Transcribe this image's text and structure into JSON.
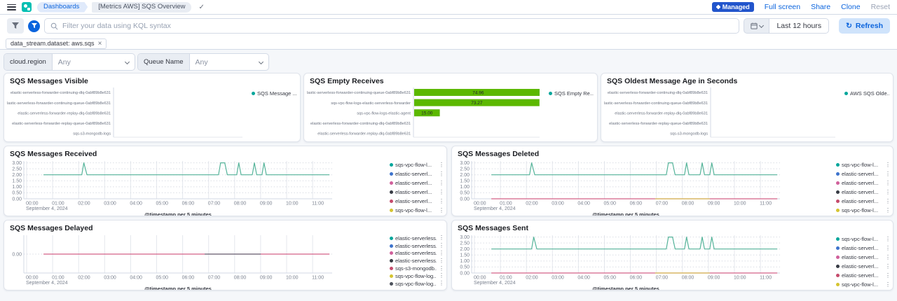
{
  "header": {
    "breadcrumbs": [
      "Dashboards",
      "[Metrics AWS] SQS Overview"
    ],
    "managed_badge": "Managed",
    "actions": {
      "full_screen": "Full screen",
      "share": "Share",
      "clone": "Clone",
      "reset": "Reset"
    }
  },
  "query_bar": {
    "placeholder": "Filter your data using KQL syntax",
    "time_range": "Last 12 hours",
    "refresh_label": "Refresh"
  },
  "filter_pill": {
    "label": "data_stream.dataset: aws.sqs",
    "close": "×"
  },
  "controls": [
    {
      "label": "cloud.region",
      "value": "Any"
    },
    {
      "label": "Queue Name",
      "value": "Any"
    }
  ],
  "icons": {
    "check": "✓",
    "refresh": "↻",
    "menu_dots": "⋮"
  },
  "colors": {
    "accent_blue": "#0B64DD",
    "badge_blue": "#2255CC",
    "bar_green": "#5CB800",
    "line_teal": "#54B399",
    "line_pink": "#D36086",
    "line_yellow": "#D6BF57",
    "line_gray": "#69707D"
  },
  "charts": [
    {
      "id": "visible",
      "title": "SQS Messages Visible",
      "type": "bar-h",
      "categories": [
        "elastic-serverless-forwarder-continuing-dlq-0abf89b8e631",
        "elastic-serverless-forwarder-continuing-queue-0abf89b8e631",
        "elastic-serverless-forwarder-replay-dlq-0abf89b8e631",
        "elastic-serverless-forwarder-replay-queue-0abf89b8e631",
        "sqs-s3-mongodb-logs"
      ],
      "values": [
        null,
        null,
        null,
        null,
        null
      ],
      "legend": [
        {
          "label": "SQS Message ...",
          "color": "#00A69B"
        }
      ]
    },
    {
      "id": "empty",
      "title": "SQS Empty Receives",
      "type": "bar-h",
      "categories": [
        "elastic-serverless-forwarder-continuing-queue-0abf89b8e631",
        "sqs-vpc-flow-logs-elastic-serverless-forwarder",
        "sqs-vpc-flow-logs-elastic-agent",
        "elastic-serverless-forwarder-continuing-dlq-0abf89b8e631",
        "elastic-serverless-forwarder-replay-dlq-0abf89b8e631"
      ],
      "values": [
        74.96,
        73.27,
        15.0,
        null,
        null
      ],
      "value_labels": [
        "74.96",
        "73.27",
        "15.00"
      ],
      "xmax": 82,
      "bar_color": "#5CB800",
      "legend": [
        {
          "label": "SQS Empty Re...",
          "color": "#00A69B"
        }
      ]
    },
    {
      "id": "oldest",
      "title": "SQS Oldest Message Age in Seconds",
      "type": "bar-h",
      "categories": [
        "elastic-serverless-forwarder-continuing-dlq-0abf89b8e631",
        "elastic-serverless-forwarder-continuing-queue-0abf89b8e631",
        "elastic-serverless-forwarder-replay-dlq-0abf89b8e631",
        "elastic-serverless-forwarder-replay-queue-0abf89b8e631",
        "sqs-s3-mongodb-logs"
      ],
      "values": [
        null,
        null,
        null,
        null,
        null
      ],
      "legend": [
        {
          "label": "AWS SQS Olde...",
          "color": "#00A69B"
        }
      ]
    },
    {
      "id": "received",
      "title": "SQS Messages Received",
      "type": "line",
      "ymin": 0,
      "ymax": 3.15,
      "yticks": [
        [
          3,
          "3.00"
        ],
        [
          2.5,
          "2.50"
        ],
        [
          2,
          "2.00"
        ],
        [
          1.5,
          "1.50"
        ],
        [
          1,
          "1.00"
        ],
        [
          0.5,
          "0.50"
        ],
        [
          0,
          "0.00"
        ]
      ],
      "xticks": [
        [
          0,
          "00:00"
        ],
        [
          1,
          "01:00"
        ],
        [
          2,
          "02:00"
        ],
        [
          3,
          "03:00"
        ],
        [
          4,
          "04:00"
        ],
        [
          5,
          "05:00"
        ],
        [
          6,
          "06:00"
        ],
        [
          7,
          "07:00"
        ],
        [
          8,
          "08:00"
        ],
        [
          9,
          "09:00"
        ],
        [
          10,
          "10:00"
        ],
        [
          11,
          "11:00"
        ]
      ],
      "date_label": "September 4, 2024",
      "axis_title": "@timestamp per 5 minutes",
      "series": [
        {
          "name": "sqs-vpc-flow-logs",
          "color": "#54B399",
          "points": [
            [
              0.65,
              2
            ],
            [
              2.12,
              2
            ],
            [
              2.2,
              3
            ],
            [
              2.32,
              2
            ],
            [
              7.38,
              2
            ],
            [
              7.46,
              3
            ],
            [
              7.62,
              3
            ],
            [
              7.72,
              2
            ],
            [
              8.08,
              2
            ],
            [
              8.16,
              3
            ],
            [
              8.25,
              2
            ],
            [
              8.68,
              2
            ],
            [
              8.76,
              3
            ],
            [
              8.85,
              2
            ],
            [
              9.05,
              2
            ],
            [
              9.13,
              3
            ],
            [
              9.22,
              2
            ],
            [
              11.65,
              2
            ]
          ]
        }
      ],
      "legend": [
        {
          "label": "sqs-vpc-flow-l...",
          "color": "#00A69B",
          "menu": true
        },
        {
          "label": "elastic-serverl...",
          "color": "#3D73CC",
          "menu": true
        },
        {
          "label": "elastic-serverl...",
          "color": "#D0609B",
          "menu": true
        },
        {
          "label": "elastic-serverl...",
          "color": "#373B44",
          "menu": true
        },
        {
          "label": "elastic-serverl...",
          "color": "#C54B6C",
          "menu": true
        },
        {
          "label": "sqs-vpc-flow-l...",
          "color": "#D5C42F",
          "menu": true
        }
      ]
    },
    {
      "id": "deleted",
      "title": "SQS Messages Deleted",
      "type": "line",
      "ymin": 0,
      "ymax": 3.15,
      "yticks": [
        [
          3,
          "3.00"
        ],
        [
          2.5,
          "2.50"
        ],
        [
          2,
          "2.00"
        ],
        [
          1.5,
          "1.50"
        ],
        [
          1,
          "1.00"
        ],
        [
          0.5,
          "0.50"
        ],
        [
          0,
          "0.00"
        ]
      ],
      "xticks": [
        [
          0,
          "00:00"
        ],
        [
          1,
          "01:00"
        ],
        [
          2,
          "02:00"
        ],
        [
          3,
          "03:00"
        ],
        [
          4,
          "04:00"
        ],
        [
          5,
          "05:00"
        ],
        [
          6,
          "06:00"
        ],
        [
          7,
          "07:00"
        ],
        [
          8,
          "08:00"
        ],
        [
          9,
          "09:00"
        ],
        [
          10,
          "10:00"
        ],
        [
          11,
          "11:00"
        ]
      ],
      "date_label": "September 4, 2024",
      "axis_title": "@timestamp per 5 minutes",
      "series": [
        {
          "name": "pink-zero",
          "color": "#D36086",
          "points": [
            [
              0.65,
              0
            ],
            [
              11.65,
              0
            ]
          ]
        },
        {
          "name": "yellow-zero",
          "color": "#D6BF57",
          "points": [
            [
              6.95,
              0
            ],
            [
              9.05,
              0
            ]
          ]
        },
        {
          "name": "sqs-vpc-flow-logs",
          "color": "#54B399",
          "points": [
            [
              0.65,
              2
            ],
            [
              2.12,
              2
            ],
            [
              2.2,
              3
            ],
            [
              2.32,
              2
            ],
            [
              7.38,
              2
            ],
            [
              7.46,
              3
            ],
            [
              7.62,
              3
            ],
            [
              7.72,
              2
            ],
            [
              8.08,
              2
            ],
            [
              8.16,
              3
            ],
            [
              8.25,
              2
            ],
            [
              8.68,
              2
            ],
            [
              8.76,
              3
            ],
            [
              8.85,
              2
            ],
            [
              9.05,
              2
            ],
            [
              9.13,
              3
            ],
            [
              9.22,
              2
            ],
            [
              11.65,
              2
            ]
          ]
        }
      ],
      "legend": [
        {
          "label": "sqs-vpc-flow-l...",
          "color": "#00A69B",
          "menu": true
        },
        {
          "label": "elastic-serverl...",
          "color": "#3D73CC",
          "menu": true
        },
        {
          "label": "elastic-serverl...",
          "color": "#D0609B",
          "menu": true
        },
        {
          "label": "elastic-serverl...",
          "color": "#373B44",
          "menu": true
        },
        {
          "label": "elastic-serverl...",
          "color": "#C54B6C",
          "menu": true
        },
        {
          "label": "sqs-vpc-flow-l...",
          "color": "#D5C42F",
          "menu": true
        }
      ]
    },
    {
      "id": "delayed",
      "title": "SQS Messages Delayed",
      "type": "line",
      "ymin": -1,
      "ymax": 1,
      "yticks": [
        [
          0,
          "0.00"
        ]
      ],
      "xticks": [
        [
          0,
          "00:00"
        ],
        [
          1,
          "01:00"
        ],
        [
          2,
          "02:00"
        ],
        [
          3,
          "03:00"
        ],
        [
          4,
          "04:00"
        ],
        [
          5,
          "05:00"
        ],
        [
          6,
          "06:00"
        ],
        [
          7,
          "07:00"
        ],
        [
          8,
          "08:00"
        ],
        [
          9,
          "09:00"
        ],
        [
          10,
          "10:00"
        ],
        [
          11,
          "11:00"
        ]
      ],
      "date_label": "September 4, 2024",
      "axis_title": "@timestamp per 5 minutes",
      "series": [
        {
          "name": "pink-zero",
          "color": "#D36086",
          "points": [
            [
              0.65,
              0
            ],
            [
              11.65,
              0
            ]
          ]
        },
        {
          "name": "gray-zero",
          "color": "#69707D",
          "points": [
            [
              6.85,
              0
            ],
            [
              9.0,
              0
            ]
          ]
        }
      ],
      "legend": [
        {
          "label": "elastic-serverless...",
          "color": "#00A69B",
          "menu": true
        },
        {
          "label": "elastic-serverless...",
          "color": "#3D73CC",
          "menu": true
        },
        {
          "label": "elastic-serverless...",
          "color": "#D0609B",
          "menu": true
        },
        {
          "label": "elastic-serverless...",
          "color": "#373B44",
          "menu": true
        },
        {
          "label": "sqs-s3-mongodb...",
          "color": "#C54B6C",
          "menu": true
        },
        {
          "label": "sqs-vpc-flow-log...",
          "color": "#D5C42F",
          "menu": true
        },
        {
          "label": "sqs-vpc-flow-log...",
          "color": "#4D525C",
          "menu": true
        }
      ]
    },
    {
      "id": "sent",
      "title": "SQS Messages Sent",
      "type": "line",
      "ymin": 0,
      "ymax": 3.15,
      "yticks": [
        [
          3,
          "3.00"
        ],
        [
          2.5,
          "2.50"
        ],
        [
          2,
          "2.00"
        ],
        [
          1.5,
          "1.50"
        ],
        [
          1,
          "1.00"
        ],
        [
          0.5,
          "0.50"
        ],
        [
          0,
          "0.00"
        ]
      ],
      "xticks": [
        [
          0,
          "00:00"
        ],
        [
          1,
          "01:00"
        ],
        [
          2,
          "02:00"
        ],
        [
          3,
          "03:00"
        ],
        [
          4,
          "04:00"
        ],
        [
          5,
          "05:00"
        ],
        [
          6,
          "06:00"
        ],
        [
          7,
          "07:00"
        ],
        [
          8,
          "08:00"
        ],
        [
          9,
          "09:00"
        ],
        [
          10,
          "10:00"
        ],
        [
          11,
          "11:00"
        ]
      ],
      "date_label": "September 4, 2024",
      "axis_title": "@timestamp per 5 minutes",
      "series": [
        {
          "name": "pink-zero",
          "color": "#D36086",
          "points": [
            [
              0.65,
              0
            ],
            [
              11.65,
              0
            ]
          ]
        },
        {
          "name": "yellow-zero",
          "color": "#D6BF57",
          "points": [
            [
              6.95,
              0
            ],
            [
              9.05,
              0
            ]
          ]
        },
        {
          "name": "sqs-vpc-flow-logs",
          "color": "#54B399",
          "points": [
            [
              0.65,
              2
            ],
            [
              2.2,
              2
            ],
            [
              2.28,
              3
            ],
            [
              2.4,
              2
            ],
            [
              7.38,
              2
            ],
            [
              7.46,
              3
            ],
            [
              7.62,
              3
            ],
            [
              7.72,
              2
            ],
            [
              8.08,
              2
            ],
            [
              8.16,
              3
            ],
            [
              8.25,
              2
            ],
            [
              8.68,
              2
            ],
            [
              8.76,
              3
            ],
            [
              8.85,
              2
            ],
            [
              9.05,
              2
            ],
            [
              9.13,
              3
            ],
            [
              9.22,
              2
            ],
            [
              11.65,
              2
            ]
          ]
        }
      ],
      "legend": [
        {
          "label": "sqs-vpc-flow-l...",
          "color": "#00A69B",
          "menu": true
        },
        {
          "label": "elastic-serverl...",
          "color": "#3D73CC",
          "menu": true
        },
        {
          "label": "elastic-serverl...",
          "color": "#D0609B",
          "menu": true
        },
        {
          "label": "elastic-serverl...",
          "color": "#373B44",
          "menu": true
        },
        {
          "label": "elastic-serverl...",
          "color": "#C54B6C",
          "menu": true
        },
        {
          "label": "sqs-vpc-flow-l...",
          "color": "#D5C42F",
          "menu": true
        }
      ]
    }
  ]
}
